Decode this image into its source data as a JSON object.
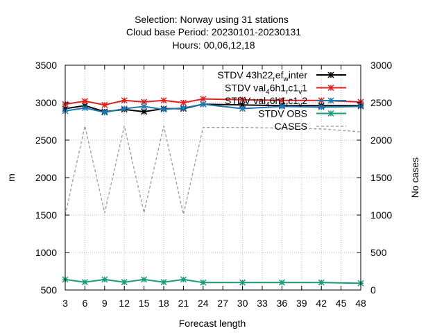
{
  "chart_data": {
    "type": "line",
    "title_lines": [
      "Selection: Norway using    31 stations",
      "Cloud base   Period: 20230101-20230131",
      "Hours:  00,06,12,18"
    ],
    "xlabel": "Forecast length",
    "ylabel": "m",
    "y2label": "No cases",
    "xlim": [
      3,
      48
    ],
    "ylim": [
      500,
      3500
    ],
    "y2lim": [
      0,
      3000
    ],
    "x_ticks": [
      3,
      6,
      9,
      12,
      15,
      18,
      21,
      24,
      27,
      30,
      33,
      36,
      39,
      42,
      45,
      48
    ],
    "y_ticks": [
      500,
      1000,
      1500,
      2000,
      2500,
      3000,
      3500
    ],
    "y2_ticks": [
      0,
      500,
      1000,
      1500,
      2000,
      2500,
      3000
    ],
    "grid": true,
    "legend_position": "top-right",
    "series": [
      {
        "label_parts": [
          {
            "t": "STDV 43h22",
            "s": "n"
          },
          {
            "t": "r",
            "s": "sub"
          },
          {
            "t": "ef",
            "s": "n"
          },
          {
            "t": "w",
            "s": "sub"
          },
          {
            "t": "inter",
            "s": "n"
          }
        ],
        "color": "#000000",
        "marker": "star",
        "axis": "y",
        "x": [
          3,
          6,
          9,
          12,
          15,
          18,
          21,
          24,
          30,
          36,
          42,
          48
        ],
        "values": [
          2920,
          2960,
          2880,
          2910,
          2880,
          2920,
          2920,
          2980,
          2970,
          2960,
          2960,
          2960
        ]
      },
      {
        "label_parts": [
          {
            "t": "STDV val",
            "s": "n"
          },
          {
            "t": "4",
            "s": "sub"
          },
          {
            "t": "6h1",
            "s": "n"
          },
          {
            "t": "r",
            "s": "sub"
          },
          {
            "t": "c1",
            "s": "n"
          },
          {
            "t": "v",
            "s": "sub"
          },
          {
            "t": "1",
            "s": "n"
          }
        ],
        "color": "#dd2222",
        "marker": "star",
        "axis": "y",
        "x": [
          3,
          6,
          9,
          12,
          15,
          18,
          21,
          24,
          30,
          36,
          42,
          48
        ],
        "values": [
          2980,
          3020,
          2970,
          3030,
          3010,
          3030,
          3000,
          3050,
          3040,
          3030,
          3030,
          3010
        ]
      },
      {
        "label_parts": [
          {
            "t": "STDV val",
            "s": "n"
          },
          {
            "t": "4",
            "s": "sub"
          },
          {
            "t": "6h1",
            "s": "n"
          },
          {
            "t": "r",
            "s": "sub"
          },
          {
            "t": "c1",
            "s": "n"
          },
          {
            "t": "v",
            "s": "sub"
          },
          {
            "t": "2",
            "s": "n"
          }
        ],
        "color": "#1f77b4",
        "marker": "star",
        "axis": "y",
        "x": [
          3,
          6,
          9,
          12,
          15,
          18,
          21,
          24,
          30,
          36,
          42,
          48
        ],
        "values": [
          2890,
          2930,
          2870,
          2920,
          2950,
          2910,
          2930,
          2980,
          2920,
          2950,
          2940,
          2950
        ]
      },
      {
        "label_parts": [
          {
            "t": "STDV OBS",
            "s": "n"
          }
        ],
        "color": "#1a9a7a",
        "marker": "star",
        "axis": "y",
        "x": [
          3,
          6,
          9,
          12,
          15,
          18,
          21,
          24,
          30,
          36,
          42,
          48
        ],
        "values": [
          640,
          605,
          640,
          605,
          640,
          605,
          640,
          600,
          600,
          600,
          600,
          590
        ]
      },
      {
        "label_parts": [
          {
            "t": "CASES",
            "s": "n"
          }
        ],
        "color": "#999999",
        "marker": "none",
        "dashed": true,
        "axis": "y2",
        "x": [
          3,
          6,
          9,
          12,
          15,
          18,
          21,
          24,
          30,
          36,
          42,
          48
        ],
        "values": [
          1000,
          2190,
          1030,
          2190,
          1030,
          2190,
          1010,
          2170,
          2170,
          2160,
          2150,
          2110
        ]
      }
    ]
  }
}
